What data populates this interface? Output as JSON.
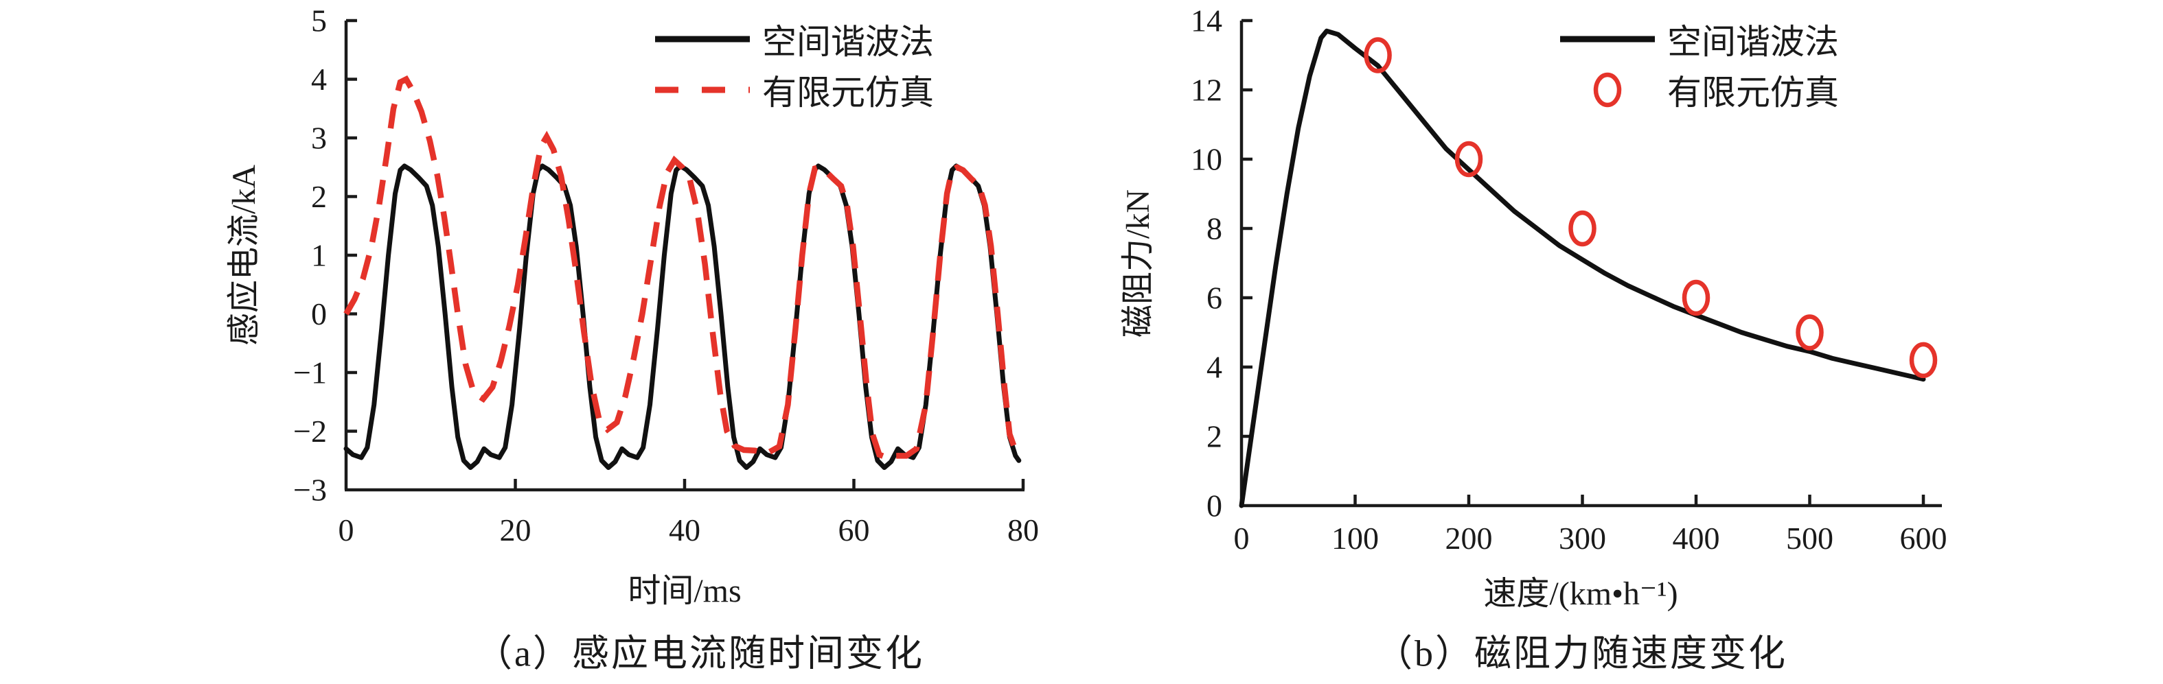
{
  "colors": {
    "black": "#111111",
    "red": "#e5332a",
    "axis": "#1a1a1a"
  },
  "chart_data": [
    {
      "id": "induced-current-vs-time",
      "type": "line",
      "caption": "（a）感应电流随时间变化",
      "xlabel": "时间/ms",
      "ylabel": "感应电流/kA",
      "xlim": [
        0,
        80
      ],
      "ylim": [
        -3,
        5
      ],
      "xticks": [
        0,
        20,
        40,
        60,
        80
      ],
      "yticks": [
        -3,
        -2,
        -1,
        0,
        1,
        2,
        3,
        4,
        5
      ],
      "grid": false,
      "legend": {
        "position": "top-right-inside",
        "entries": [
          {
            "label": "空间谐波法",
            "marker": "solid-line",
            "color": "#111111"
          },
          {
            "label": "有限元仿真",
            "marker": "dashed-line",
            "color": "#e5332a"
          }
        ]
      },
      "series": [
        {
          "name": "空间谐波法",
          "style": "solid",
          "color": "#111111",
          "points": [
            [
              0,
              -2.3
            ],
            [
              0.8,
              -2.4
            ],
            [
              1.8,
              -2.45
            ],
            [
              2.5,
              -2.28
            ],
            [
              3.3,
              -1.55
            ],
            [
              4.2,
              -0.25
            ],
            [
              5,
              1
            ],
            [
              5.8,
              2.05
            ],
            [
              6.4,
              2.45
            ],
            [
              6.9,
              2.52
            ],
            [
              7.6,
              2.46
            ],
            [
              8.6,
              2.32
            ],
            [
              9.5,
              2.18
            ],
            [
              10.2,
              1.85
            ],
            [
              10.9,
              1.15
            ],
            [
              11.7,
              0
            ],
            [
              12.5,
              -1.25
            ],
            [
              13.2,
              -2.1
            ],
            [
              13.9,
              -2.5
            ],
            [
              14.7,
              -2.62
            ],
            [
              15.5,
              -2.52
            ],
            [
              16.3,
              -2.3
            ],
            [
              17.1,
              -2.4
            ],
            [
              18.1,
              -2.45
            ],
            [
              18.8,
              -2.28
            ],
            [
              19.6,
              -1.55
            ],
            [
              20.5,
              -0.25
            ],
            [
              21.3,
              1
            ],
            [
              22.1,
              2.05
            ],
            [
              22.7,
              2.45
            ],
            [
              23.2,
              2.52
            ],
            [
              23.9,
              2.46
            ],
            [
              24.9,
              2.32
            ],
            [
              25.8,
              2.18
            ],
            [
              26.5,
              1.85
            ],
            [
              27.2,
              1.15
            ],
            [
              28,
              0
            ],
            [
              28.8,
              -1.25
            ],
            [
              29.5,
              -2.1
            ],
            [
              30.2,
              -2.5
            ],
            [
              31,
              -2.62
            ],
            [
              31.8,
              -2.52
            ],
            [
              32.6,
              -2.3
            ],
            [
              33.4,
              -2.4
            ],
            [
              34.4,
              -2.45
            ],
            [
              35.1,
              -2.28
            ],
            [
              35.9,
              -1.55
            ],
            [
              36.8,
              -0.25
            ],
            [
              37.6,
              1
            ],
            [
              38.4,
              2.05
            ],
            [
              39,
              2.45
            ],
            [
              39.5,
              2.52
            ],
            [
              40.2,
              2.46
            ],
            [
              41.2,
              2.32
            ],
            [
              42.1,
              2.18
            ],
            [
              42.8,
              1.85
            ],
            [
              43.5,
              1.15
            ],
            [
              44.3,
              0
            ],
            [
              45.1,
              -1.25
            ],
            [
              45.8,
              -2.1
            ],
            [
              46.5,
              -2.5
            ],
            [
              47.3,
              -2.62
            ],
            [
              48.1,
              -2.52
            ],
            [
              48.9,
              -2.3
            ],
            [
              49.7,
              -2.4
            ],
            [
              50.7,
              -2.45
            ],
            [
              51.4,
              -2.28
            ],
            [
              52.2,
              -1.55
            ],
            [
              53.1,
              -0.25
            ],
            [
              53.9,
              1
            ],
            [
              54.7,
              2.05
            ],
            [
              55.3,
              2.45
            ],
            [
              55.8,
              2.52
            ],
            [
              56.5,
              2.46
            ],
            [
              57.5,
              2.32
            ],
            [
              58.4,
              2.18
            ],
            [
              59.1,
              1.85
            ],
            [
              59.8,
              1.15
            ],
            [
              60.6,
              0
            ],
            [
              61.4,
              -1.25
            ],
            [
              62.1,
              -2.1
            ],
            [
              62.8,
              -2.5
            ],
            [
              63.6,
              -2.62
            ],
            [
              64.4,
              -2.52
            ],
            [
              65.2,
              -2.3
            ],
            [
              66,
              -2.4
            ],
            [
              67,
              -2.45
            ],
            [
              67.7,
              -2.28
            ],
            [
              68.5,
              -1.55
            ],
            [
              69.4,
              -0.25
            ],
            [
              70.2,
              1
            ],
            [
              71,
              2.05
            ],
            [
              71.6,
              2.45
            ],
            [
              72.1,
              2.52
            ],
            [
              72.8,
              2.46
            ],
            [
              73.8,
              2.32
            ],
            [
              74.7,
              2.18
            ],
            [
              75.4,
              1.85
            ],
            [
              76.1,
              1.15
            ],
            [
              76.9,
              0
            ],
            [
              77.7,
              -1.25
            ],
            [
              78.4,
              -2.1
            ],
            [
              79.1,
              -2.42
            ],
            [
              79.5,
              -2.5
            ]
          ]
        },
        {
          "name": "有限元仿真",
          "style": "dashed",
          "color": "#e5332a",
          "points": [
            [
              0,
              0
            ],
            [
              1,
              0.25
            ],
            [
              2,
              0.6
            ],
            [
              3,
              1.15
            ],
            [
              3.9,
              1.85
            ],
            [
              4.8,
              2.7
            ],
            [
              5.6,
              3.5
            ],
            [
              6.4,
              3.95
            ],
            [
              7.1,
              4
            ],
            [
              7.9,
              3.8
            ],
            [
              8.9,
              3.45
            ],
            [
              9.9,
              2.95
            ],
            [
              10.8,
              2.35
            ],
            [
              11.6,
              1.65
            ],
            [
              12.4,
              0.85
            ],
            [
              13.2,
              0
            ],
            [
              14.1,
              -0.85
            ],
            [
              15.1,
              -1.35
            ],
            [
              16.2,
              -1.45
            ],
            [
              17.3,
              -1.25
            ],
            [
              18.3,
              -0.8
            ],
            [
              19.3,
              -0.2
            ],
            [
              20.3,
              0.5
            ],
            [
              21.2,
              1.3
            ],
            [
              22.1,
              2.15
            ],
            [
              23,
              2.85
            ],
            [
              23.7,
              3.02
            ],
            [
              24.5,
              2.8
            ],
            [
              25.4,
              2.35
            ],
            [
              26.3,
              1.6
            ],
            [
              27.2,
              0.7
            ],
            [
              28.1,
              -0.3
            ],
            [
              29,
              -1.2
            ],
            [
              29.9,
              -1.8
            ],
            [
              30.9,
              -1.97
            ],
            [
              32,
              -1.85
            ],
            [
              33,
              -1.4
            ],
            [
              34,
              -0.75
            ],
            [
              35,
              0
            ],
            [
              36,
              0.9
            ],
            [
              37,
              1.8
            ],
            [
              37.9,
              2.4
            ],
            [
              38.8,
              2.62
            ],
            [
              39.7,
              2.5
            ],
            [
              40.6,
              2.3
            ],
            [
              41.5,
              1.75
            ],
            [
              42.4,
              0.85
            ],
            [
              43.3,
              -0.3
            ],
            [
              44.2,
              -1.35
            ],
            [
              45,
              -2
            ],
            [
              45.9,
              -2.25
            ],
            [
              47,
              -2.32
            ],
            [
              48.3,
              -2.33
            ],
            [
              49.7,
              -2.38
            ],
            [
              51.2,
              -2.26
            ],
            [
              52.2,
              -1.55
            ],
            [
              53.1,
              -0.25
            ],
            [
              53.9,
              1
            ],
            [
              54.7,
              2.05
            ],
            [
              55.4,
              2.48
            ],
            [
              55.9,
              2.5
            ],
            [
              56.6,
              2.44
            ],
            [
              57.6,
              2.3
            ],
            [
              58.5,
              2.18
            ],
            [
              59.2,
              1.85
            ],
            [
              59.9,
              1.15
            ],
            [
              60.7,
              0
            ],
            [
              61.5,
              -1.2
            ],
            [
              62.2,
              -2.05
            ],
            [
              63,
              -2.4
            ],
            [
              63.9,
              -2.45
            ],
            [
              65,
              -2.42
            ],
            [
              66.2,
              -2.42
            ],
            [
              67.4,
              -2.3
            ],
            [
              68.5,
              -1.55
            ],
            [
              69.4,
              -0.25
            ],
            [
              70.2,
              1
            ],
            [
              71,
              2.05
            ],
            [
              71.6,
              2.45
            ],
            [
              72.2,
              2.5
            ],
            [
              72.9,
              2.45
            ],
            [
              73.9,
              2.3
            ],
            [
              74.8,
              2.18
            ],
            [
              75.5,
              1.85
            ],
            [
              76.2,
              1.15
            ],
            [
              77,
              0
            ],
            [
              77.8,
              -1.25
            ],
            [
              78.4,
              -2.05
            ],
            [
              78.9,
              -2.25
            ]
          ]
        }
      ]
    },
    {
      "id": "magnetic-resistance-vs-speed",
      "type": "line+scatter",
      "caption": "（b）磁阻力随速度变化",
      "xlabel": "速度/(km•h⁻¹)",
      "ylabel": "磁阻力/kN",
      "xlim": [
        0,
        620
      ],
      "ylim": [
        0,
        14
      ],
      "xticks": [
        0,
        100,
        200,
        300,
        400,
        500,
        600
      ],
      "yticks": [
        0,
        2,
        4,
        6,
        8,
        10,
        12,
        14
      ],
      "grid": false,
      "legend": {
        "position": "top-right-inside",
        "entries": [
          {
            "label": "空间谐波法",
            "marker": "solid-line",
            "color": "#111111"
          },
          {
            "label": "有限元仿真",
            "marker": "open-ellipse",
            "color": "#e5332a"
          }
        ]
      },
      "series": [
        {
          "name": "空间谐波法",
          "style": "solid",
          "color": "#111111",
          "points": [
            [
              0,
              0
            ],
            [
              10,
              2.3
            ],
            [
              20,
              4.6
            ],
            [
              30,
              6.9
            ],
            [
              40,
              9
            ],
            [
              50,
              10.9
            ],
            [
              60,
              12.4
            ],
            [
              70,
              13.5
            ],
            [
              75,
              13.7
            ],
            [
              85,
              13.6
            ],
            [
              100,
              13.2
            ],
            [
              120,
              12.7
            ],
            [
              140,
              11.9
            ],
            [
              160,
              11.1
            ],
            [
              180,
              10.3
            ],
            [
              200,
              9.7
            ],
            [
              220,
              9.1
            ],
            [
              240,
              8.5
            ],
            [
              260,
              8
            ],
            [
              280,
              7.5
            ],
            [
              300,
              7.1
            ],
            [
              320,
              6.7
            ],
            [
              340,
              6.35
            ],
            [
              360,
              6.05
            ],
            [
              380,
              5.75
            ],
            [
              400,
              5.5
            ],
            [
              420,
              5.25
            ],
            [
              440,
              5
            ],
            [
              460,
              4.8
            ],
            [
              480,
              4.6
            ],
            [
              500,
              4.45
            ],
            [
              520,
              4.25
            ],
            [
              540,
              4.1
            ],
            [
              560,
              3.95
            ],
            [
              580,
              3.8
            ],
            [
              600,
              3.65
            ]
          ]
        },
        {
          "name": "有限元仿真",
          "style": "scatter-ellipse",
          "color": "#e5332a",
          "points": [
            [
              120,
              13
            ],
            [
              200,
              10
            ],
            [
              300,
              8
            ],
            [
              400,
              6
            ],
            [
              500,
              5
            ],
            [
              600,
              4.2
            ]
          ]
        }
      ]
    }
  ]
}
